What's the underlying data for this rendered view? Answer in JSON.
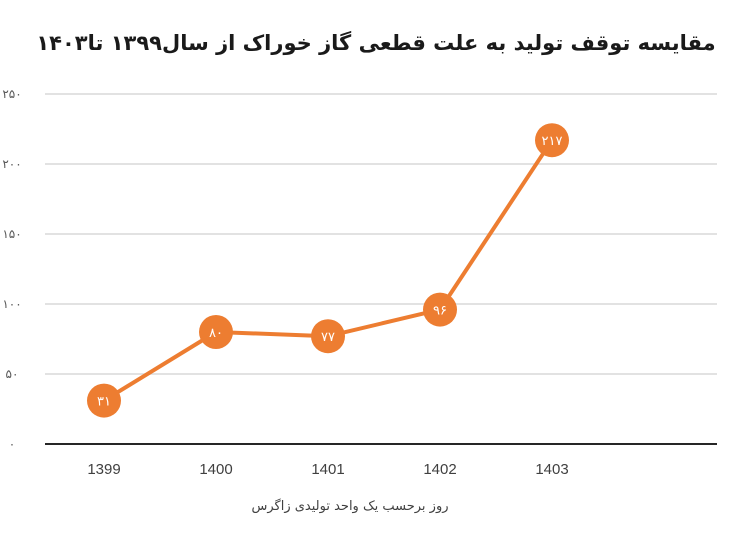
{
  "chart_data": {
    "type": "line",
    "title": "مقایسه توقف تولید به علت قطعی گاز خوراک از سال۱۳۹۹ تا۱۴۰۳",
    "xlabel": "روز برحسب یک واحد تولیدی زاگرس",
    "ylabel": "",
    "categories": [
      "1399",
      "1400",
      "1401",
      "1402",
      "1403"
    ],
    "series": [
      {
        "values": [
          31,
          80,
          77,
          96,
          217
        ],
        "data_labels": [
          "۳۱",
          "۸۰",
          "۷۷",
          "۹۶",
          "۲۱۷"
        ]
      }
    ],
    "ylim": [
      0,
      250
    ],
    "y_ticks": [
      0,
      50,
      100,
      150,
      200,
      250
    ],
    "y_tick_labels": [
      "۰",
      "۵۰",
      "۱۰۰",
      "۱۵۰",
      "۲۰۰",
      "۲۵۰"
    ],
    "grid": true,
    "legend": "none",
    "colors": {
      "line": "#ED7D31",
      "grid": "#D9D9D9",
      "axis": "#262626"
    }
  }
}
